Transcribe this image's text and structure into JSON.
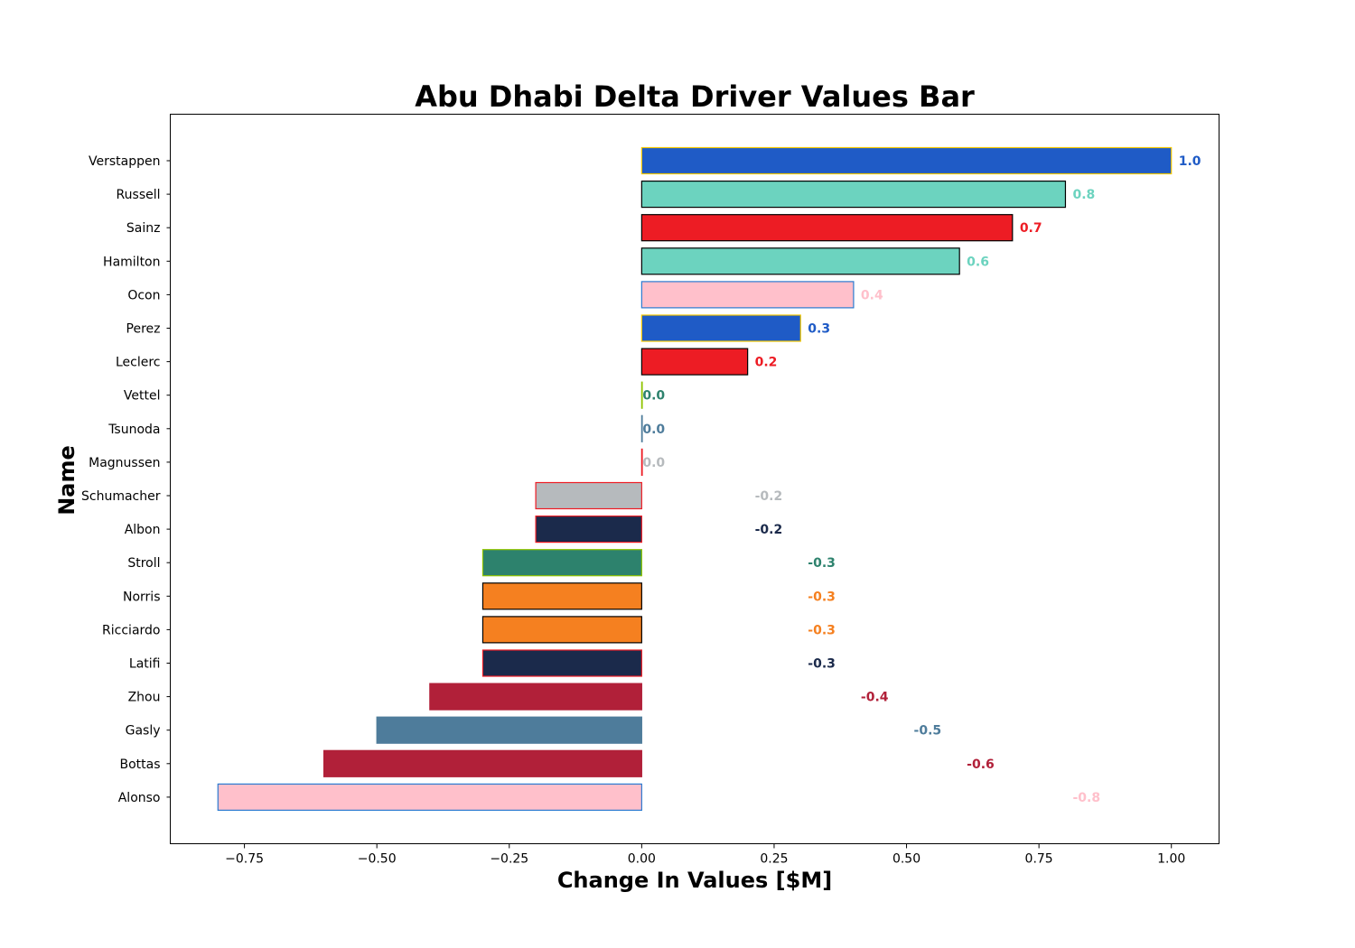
{
  "chart_data": {
    "type": "bar",
    "orientation": "horizontal",
    "title": "Abu Dhabi Delta Driver Values Bar",
    "xlabel": "Change In Values [$M]",
    "ylabel": "Name",
    "xlim": [
      -0.89,
      1.09
    ],
    "xticks": [
      "−0.75",
      "−0.50",
      "−0.25",
      "0.00",
      "0.25",
      "0.50",
      "0.75",
      "1.00"
    ],
    "xtick_values": [
      -0.75,
      -0.5,
      -0.25,
      0,
      0.25,
      0.5,
      0.75,
      1.0
    ],
    "grid": false,
    "bars": [
      {
        "name": "Verstappen",
        "value": 1.0,
        "label": "1.0",
        "fill": "#1f5bc6",
        "edge": "#f5c800"
      },
      {
        "name": "Russell",
        "value": 0.8,
        "label": "0.8",
        "fill": "#6cd3bf",
        "edge": "#000000"
      },
      {
        "name": "Sainz",
        "value": 0.7,
        "label": "0.7",
        "fill": "#ed1c24",
        "edge": "#000000"
      },
      {
        "name": "Hamilton",
        "value": 0.6,
        "label": "0.6",
        "fill": "#6cd3bf",
        "edge": "#000000"
      },
      {
        "name": "Ocon",
        "value": 0.4,
        "label": "0.4",
        "fill": "#ffc0cb",
        "edge": "#2a7ad0"
      },
      {
        "name": "Perez",
        "value": 0.3,
        "label": "0.3",
        "fill": "#1f5bc6",
        "edge": "#f5c800"
      },
      {
        "name": "Leclerc",
        "value": 0.2,
        "label": "0.2",
        "fill": "#ed1c24",
        "edge": "#000000"
      },
      {
        "name": "Vettel",
        "value": 0.0,
        "label": "0.0",
        "fill": "#2d826d",
        "edge": "#8fc400"
      },
      {
        "name": "Tsunoda",
        "value": 0.0,
        "label": "0.0",
        "fill": "#4e7c9b",
        "edge": "#4e7c9b"
      },
      {
        "name": "Magnussen",
        "value": 0.0,
        "label": "0.0",
        "fill": "#b6babd",
        "edge": "#ed1c24"
      },
      {
        "name": "Schumacher",
        "value": -0.2,
        "label": "-0.2",
        "fill": "#b6babd",
        "edge": "#ed1c24"
      },
      {
        "name": "Albon",
        "value": -0.2,
        "label": "-0.2",
        "fill": "#1b2a4b",
        "edge": "#ed1c24"
      },
      {
        "name": "Stroll",
        "value": -0.3,
        "label": "-0.3",
        "fill": "#2d826d",
        "edge": "#8fc400"
      },
      {
        "name": "Norris",
        "value": -0.3,
        "label": "-0.3",
        "fill": "#f58020",
        "edge": "#000000"
      },
      {
        "name": "Ricciardo",
        "value": -0.3,
        "label": "-0.3",
        "fill": "#f58020",
        "edge": "#000000"
      },
      {
        "name": "Latifi",
        "value": -0.3,
        "label": "-0.3",
        "fill": "#1b2a4b",
        "edge": "#ed1c24"
      },
      {
        "name": "Zhou",
        "value": -0.4,
        "label": "-0.4",
        "fill": "#b12039",
        "edge": "#b12039"
      },
      {
        "name": "Gasly",
        "value": -0.5,
        "label": "-0.5",
        "fill": "#4e7c9b",
        "edge": "#4e7c9b"
      },
      {
        "name": "Bottas",
        "value": -0.6,
        "label": "-0.6",
        "fill": "#b12039",
        "edge": "#b12039"
      },
      {
        "name": "Alonso",
        "value": -0.8,
        "label": "-0.8",
        "fill": "#ffc0cb",
        "edge": "#2a7ad0"
      }
    ]
  }
}
